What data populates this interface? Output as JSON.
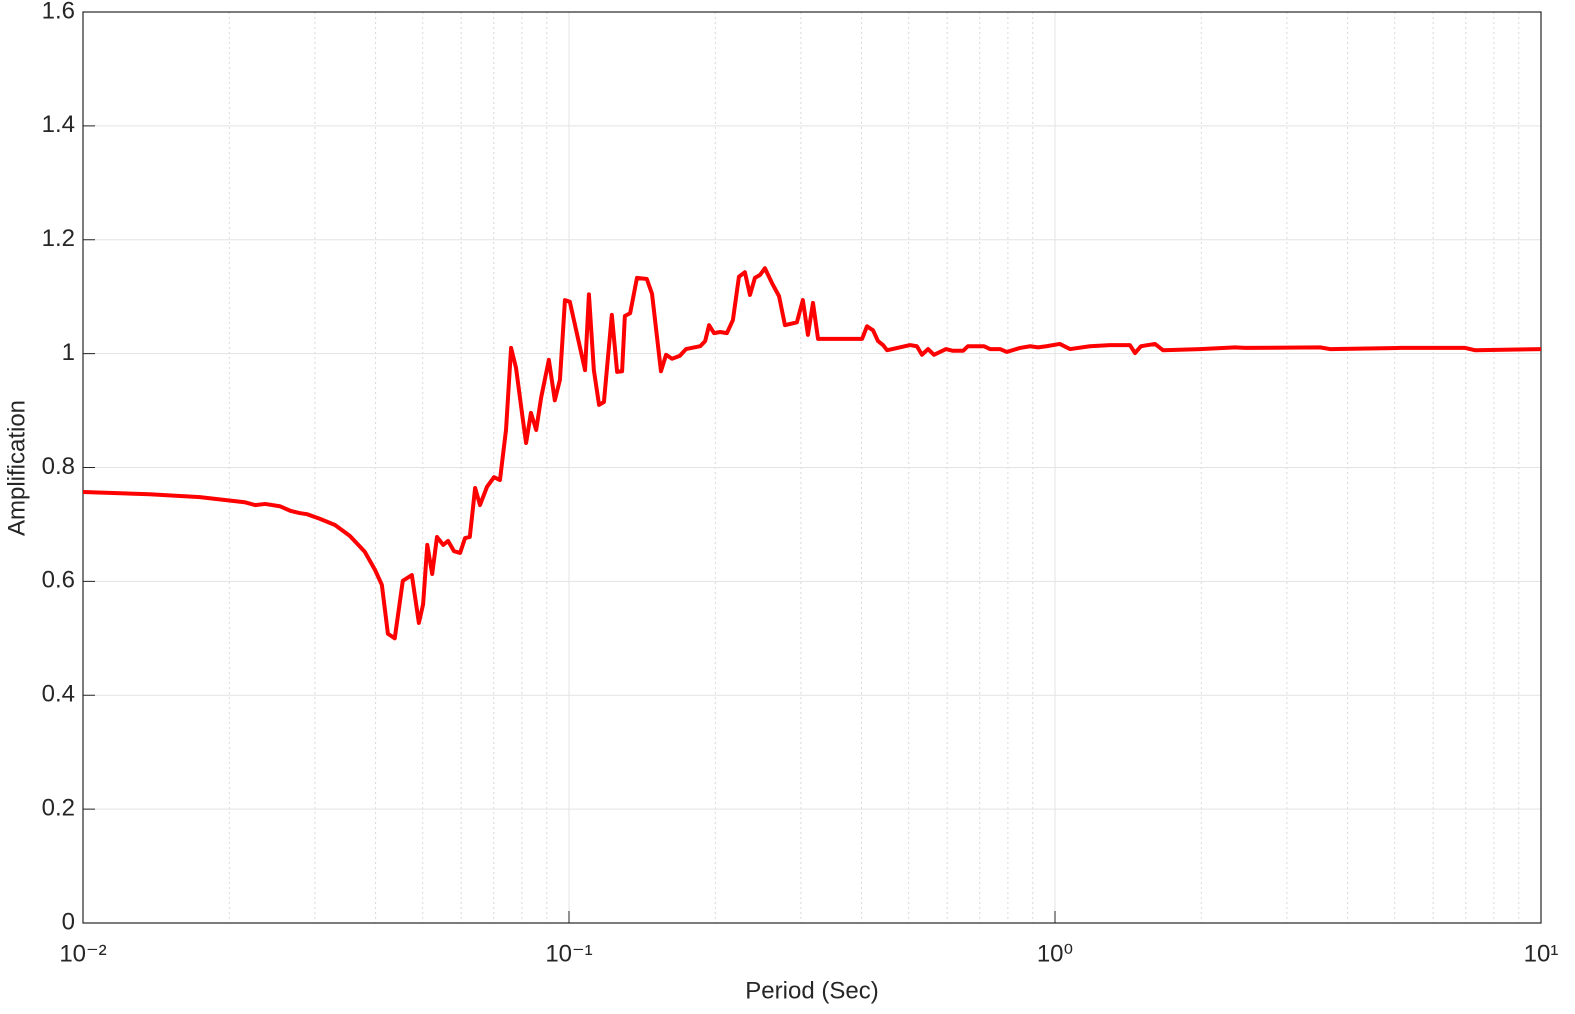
{
  "chart_data": {
    "type": "line",
    "xlabel": "Period (Sec)",
    "ylabel": "Amplification",
    "xscale": "log",
    "grid": true,
    "color": "#ff0000",
    "xlim": [
      0.01,
      10
    ],
    "ylim": [
      0,
      1.6
    ],
    "xticks": [
      {
        "value": 0.01,
        "label": "10⁻²"
      },
      {
        "value": 0.1,
        "label": "10⁻¹"
      },
      {
        "value": 1,
        "label": "10⁰"
      },
      {
        "value": 10,
        "label": "10¹"
      }
    ],
    "yticks": [
      0,
      0.2,
      0.4,
      0.6,
      0.8,
      1,
      1.2,
      1.4,
      1.6
    ],
    "x": [
      0.01,
      0.0137,
      0.0174,
      0.0215,
      0.0226,
      0.0237,
      0.0254,
      0.0267,
      0.0279,
      0.0289,
      0.0307,
      0.033,
      0.0354,
      0.038,
      0.0399,
      0.0412,
      0.0424,
      0.0438,
      0.0455,
      0.0475,
      0.0491,
      0.0501,
      0.0511,
      0.0523,
      0.0535,
      0.0551,
      0.0564,
      0.058,
      0.0597,
      0.0611,
      0.0625,
      0.0641,
      0.0656,
      0.0678,
      0.0701,
      0.0721,
      0.0742,
      0.076,
      0.0778,
      0.0804,
      0.0816,
      0.0835,
      0.0856,
      0.0876,
      0.0909,
      0.0935,
      0.0958,
      0.0981,
      0.1004,
      0.1079,
      0.1099,
      0.1125,
      0.1153,
      0.118,
      0.1225,
      0.1256,
      0.1286,
      0.1303,
      0.1336,
      0.138,
      0.1446,
      0.1482,
      0.1546,
      0.1584,
      0.1629,
      0.169,
      0.1741,
      0.1862,
      0.1906,
      0.1942,
      0.1988,
      0.2046,
      0.2113,
      0.2174,
      0.2237,
      0.2301,
      0.2357,
      0.2413,
      0.2471,
      0.253,
      0.2616,
      0.2705,
      0.2782,
      0.2944,
      0.3028,
      0.3102,
      0.3177,
      0.3254,
      0.401,
      0.4103,
      0.4223,
      0.4324,
      0.4428,
      0.4512,
      0.5032,
      0.5198,
      0.5324,
      0.548,
      0.5636,
      0.5967,
      0.6166,
      0.647,
      0.662,
      0.714,
      0.735,
      0.771,
      0.796,
      0.847,
      0.889,
      0.923,
      0.96,
      1.023,
      1.074,
      1.18,
      1.297,
      1.426,
      1.461,
      1.503,
      1.606,
      1.668,
      1.987,
      2.346,
      2.458,
      3.51,
      3.68,
      5.13,
      6.98,
      7.31,
      10
    ],
    "values": [
      0.757,
      0.753,
      0.748,
      0.739,
      0.734,
      0.736,
      0.732,
      0.724,
      0.72,
      0.718,
      0.71,
      0.699,
      0.68,
      0.652,
      0.62,
      0.594,
      0.508,
      0.5,
      0.601,
      0.611,
      0.527,
      0.56,
      0.664,
      0.613,
      0.678,
      0.664,
      0.671,
      0.653,
      0.65,
      0.676,
      0.678,
      0.764,
      0.734,
      0.766,
      0.783,
      0.778,
      0.866,
      1.01,
      0.975,
      0.883,
      0.843,
      0.896,
      0.866,
      0.922,
      0.989,
      0.918,
      0.954,
      1.094,
      1.091,
      0.971,
      1.104,
      0.971,
      0.91,
      0.915,
      1.068,
      0.968,
      0.969,
      1.066,
      1.071,
      1.133,
      1.131,
      1.105,
      0.969,
      0.998,
      0.991,
      0.996,
      1.008,
      1.013,
      1.022,
      1.05,
      1.036,
      1.038,
      1.036,
      1.059,
      1.135,
      1.143,
      1.103,
      1.133,
      1.138,
      1.15,
      1.124,
      1.101,
      1.05,
      1.055,
      1.094,
      1.033,
      1.089,
      1.026,
      1.026,
      1.048,
      1.041,
      1.022,
      1.015,
      1.006,
      1.015,
      1.013,
      0.998,
      1.008,
      0.998,
      1.008,
      1.005,
      1.005,
      1.013,
      1.013,
      1.008,
      1.008,
      1.003,
      1.01,
      1.013,
      1.011,
      1.013,
      1.017,
      1.008,
      1.013,
      1.015,
      1.015,
      1.001,
      1.013,
      1.017,
      1.006,
      1.008,
      1.011,
      1.01,
      1.011,
      1.008,
      1.01,
      1.01,
      1.006,
      1.008
    ]
  }
}
